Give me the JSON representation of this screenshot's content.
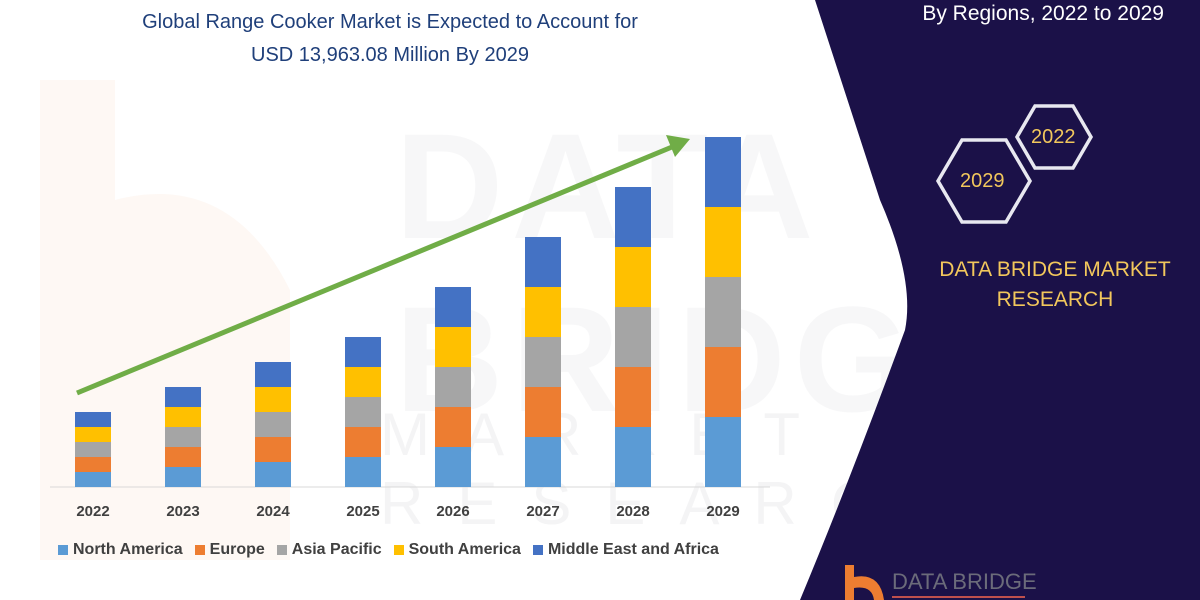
{
  "header": {
    "title_line1": "Global Range Cooker Market is Expected to Account for",
    "title_line2": "USD 13,963.08 Million By 2029",
    "right_heading": "By Regions, 2022 to 2029"
  },
  "badges": {
    "hex_1": "2022",
    "hex_2": "2029"
  },
  "brand": {
    "line1": "DATA BRIDGE MARKET",
    "line2": "RESEARCH",
    "logo_text": "DATA BRIDGE"
  },
  "watermark": {
    "text1": "DATA BRIDGE",
    "text2": "MARKET RESEARCH"
  },
  "colors": {
    "panel": "#1b1148",
    "accent_gold": "#f2c75c",
    "arrow": "#70ad47"
  },
  "chart_data": {
    "type": "bar",
    "stacked": true,
    "title": "",
    "xlabel": "",
    "ylabel": "",
    "grid": false,
    "legend_position": "bottom",
    "trend_arrow": true,
    "categories": [
      "2022",
      "2023",
      "2024",
      "2025",
      "2026",
      "2027",
      "2028",
      "2029"
    ],
    "series": [
      {
        "name": "North America",
        "color": "#5b9bd5",
        "values": [
          1.5,
          2,
          2.5,
          3,
          4,
          5,
          6,
          7
        ]
      },
      {
        "name": "Europe",
        "color": "#ed7d31",
        "values": [
          1.5,
          2,
          2.5,
          3,
          4,
          5,
          6,
          7
        ]
      },
      {
        "name": "Asia Pacific",
        "color": "#a5a5a5",
        "values": [
          1.5,
          2,
          2.5,
          3,
          4,
          5,
          6,
          7
        ]
      },
      {
        "name": "South America",
        "color": "#ffc000",
        "values": [
          1.5,
          2,
          2.5,
          3,
          4,
          5,
          6,
          7
        ]
      },
      {
        "name": "Middle East and Africa",
        "color": "#4472c4",
        "values": [
          1.5,
          2,
          2.5,
          3,
          4,
          5,
          6,
          7
        ]
      }
    ]
  }
}
